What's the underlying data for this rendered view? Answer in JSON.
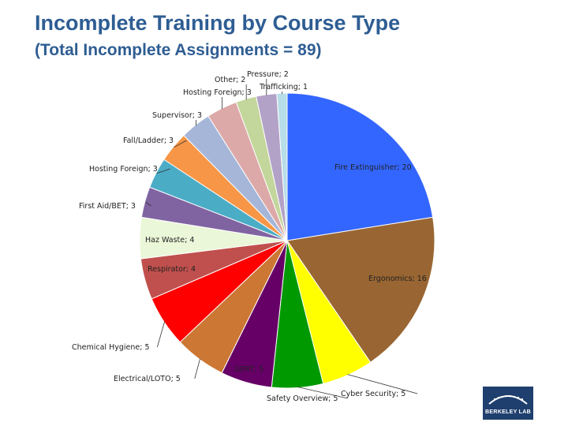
{
  "header": {
    "title": "Incomplete Training by Course Type",
    "subtitle": "(Total Incomplete Assignments = 89)"
  },
  "logo": {
    "text": "BERKELEY LAB"
  },
  "chart_data": {
    "type": "pie",
    "title": "Incomplete Training by Course Type",
    "subtitle": "(Total Incomplete Assignments = 89)",
    "start": "12 o'clock",
    "direction": "clockwise",
    "slices": [
      {
        "label": "Fire Extinguisher",
        "value": 20,
        "text": "Fire Extinguisher; 20",
        "color": "#3366ff"
      },
      {
        "label": "Ergonomics",
        "value": 16,
        "text": "Ergonomics; 16",
        "color": "#996633"
      },
      {
        "label": "Cyber Security",
        "value": 5,
        "text": "Cyber Security; 5",
        "color": "#ffff00"
      },
      {
        "label": "Safety Overview",
        "value": 5,
        "text": "Safety Overview; 5",
        "color": "#009900"
      },
      {
        "label": "GERT",
        "value": 5,
        "text": "GERT; 5",
        "color": "#660066"
      },
      {
        "label": "Electrical/LOTO",
        "value": 5,
        "text": "Electrical/LOTO; 5",
        "color": "#cc7733"
      },
      {
        "label": "Chemical Hygiene",
        "value": 5,
        "text": "Chemical Hygiene; 5",
        "color": "#ff0000"
      },
      {
        "label": "Respirator",
        "value": 4,
        "text": "Respirator; 4",
        "color": "#c0504d"
      },
      {
        "label": "Haz Waste",
        "value": 4,
        "text": "Haz Waste; 4",
        "color": "#eaf7d8"
      },
      {
        "label": "First Aid/BET",
        "value": 3,
        "text": "First Aid/BET; 3",
        "color": "#8064a2"
      },
      {
        "label": "Hosting Foreign",
        "value": 3,
        "text": "Hosting Foreign; 3",
        "color": "#4bacc6"
      },
      {
        "label": "Fall/Ladder",
        "value": 3,
        "text": "Fall/Ladder; 3",
        "color": "#f79646"
      },
      {
        "label": "Supervisor",
        "value": 3,
        "text": "Supervisor; 3",
        "color": "#a5b6d9"
      },
      {
        "label": "Hosting Foreign",
        "value": 3,
        "text": "Hosting Foreign; 3",
        "color": "#dca9a8"
      },
      {
        "label": "Other",
        "value": 2,
        "text": "Other; 2",
        "color": "#c3d69b"
      },
      {
        "label": "Pressure",
        "value": 2,
        "text": "Pressure; 2",
        "color": "#b3a2c7"
      },
      {
        "label": "Trafficking",
        "value": 1,
        "text": "Trafficking; 1",
        "color": "#b7dde8"
      }
    ]
  }
}
